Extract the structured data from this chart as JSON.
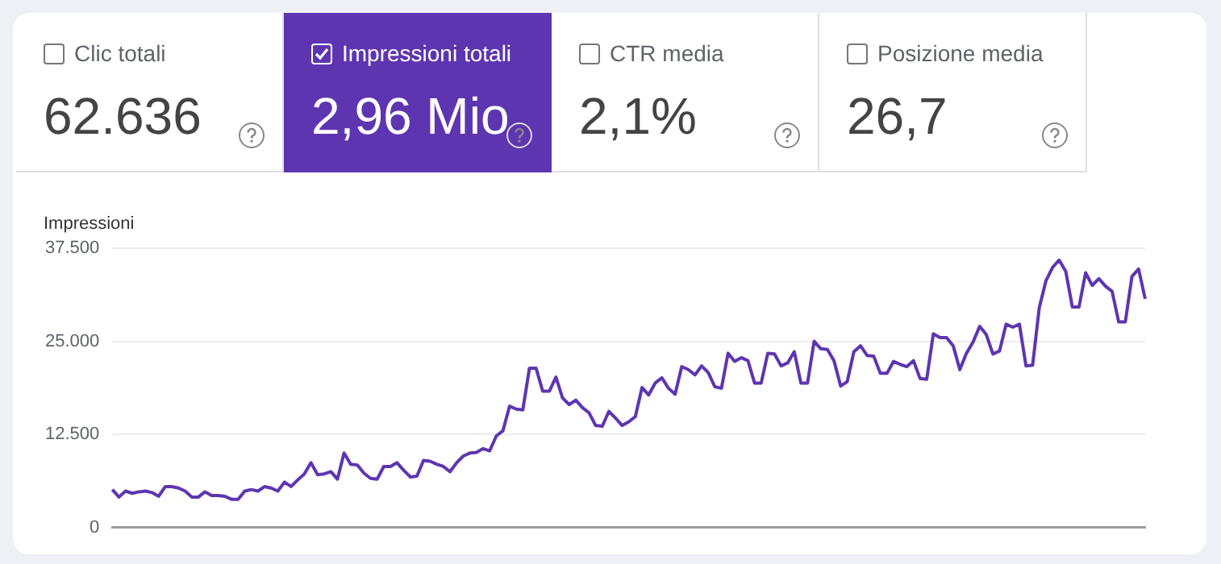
{
  "chart_data": [
    {
      "type": "other",
      "annotations": [
        "Clic totali",
        "62.636",
        "Impressioni totali",
        "2,96 Mio",
        "CTR media",
        "2,1%",
        "Posizione media",
        "26,7"
      ]
    },
    {
      "type": "line",
      "ylabel": "Impressioni",
      "color": "#5e35b1",
      "grid": "y",
      "legend": false,
      "marker": "none",
      "tick_labels": "y",
      "ylim": [
        0,
        37500
      ],
      "yticks": [
        {
          "value": 0,
          "label": "0"
        },
        {
          "value": 12500,
          "label": "12.500"
        },
        {
          "value": 25000,
          "label": "25.000"
        },
        {
          "value": 37500,
          "label": "37.500"
        }
      ],
      "categories": [
        null,
        null,
        null,
        null,
        null,
        null,
        null,
        null,
        null,
        null,
        null,
        null,
        null,
        null,
        null,
        null,
        null,
        null,
        null,
        null,
        null,
        null,
        null,
        null,
        null,
        null,
        null,
        null,
        null,
        null,
        null,
        null,
        null,
        null,
        null,
        null,
        null,
        null,
        null,
        null,
        null,
        null,
        null,
        null,
        null,
        null,
        null,
        null,
        null,
        null,
        null,
        null,
        null,
        null,
        null,
        null,
        null,
        null,
        null,
        null,
        null,
        null,
        null,
        null,
        null,
        null,
        null,
        null,
        null,
        null,
        null,
        null,
        null,
        null,
        null,
        null,
        null,
        null,
        null,
        null,
        null,
        null,
        null,
        null,
        null,
        null,
        null,
        null,
        null,
        null,
        null,
        null,
        null,
        null,
        null,
        null,
        null,
        null,
        null,
        null,
        null,
        null,
        null,
        null,
        null,
        null,
        null,
        null,
        null,
        null,
        null,
        null,
        null,
        null,
        null,
        null,
        null,
        null,
        null,
        null,
        null,
        null,
        null,
        null,
        null,
        null,
        null,
        null,
        null,
        null,
        null,
        null,
        null,
        null,
        null,
        null,
        null,
        null,
        null,
        null,
        null,
        null,
        null,
        null,
        null,
        null,
        null,
        null,
        null,
        null,
        null,
        null,
        null,
        null,
        null,
        null,
        null
      ],
      "values": [
        5100,
        4100,
        4900,
        4600,
        4800,
        4900,
        4700,
        4200,
        5500,
        5500,
        5300,
        4900,
        4100,
        4100,
        4800,
        4300,
        4300,
        4200,
        3800,
        3800,
        4900,
        5100,
        4900,
        5500,
        5300,
        4900,
        6100,
        5500,
        6400,
        7200,
        8700,
        7100,
        7200,
        7500,
        6500,
        10000,
        8500,
        8400,
        7300,
        6600,
        6500,
        8200,
        8200,
        8700,
        7700,
        6800,
        6900,
        9000,
        8900,
        8500,
        8200,
        7500,
        8700,
        9600,
        10000,
        10100,
        10600,
        10300,
        12300,
        13000,
        16300,
        15900,
        15800,
        21400,
        21400,
        18300,
        18300,
        20200,
        17400,
        16500,
        17100,
        16100,
        15400,
        13700,
        13600,
        15600,
        14700,
        13700,
        14200,
        14900,
        18800,
        17800,
        19400,
        20100,
        18700,
        17900,
        21600,
        21200,
        20500,
        21700,
        20800,
        18900,
        18700,
        23400,
        22300,
        22800,
        22400,
        19400,
        19400,
        23400,
        23300,
        21700,
        22100,
        23600,
        19400,
        19400,
        25000,
        24000,
        23900,
        22400,
        19000,
        19600,
        23600,
        24400,
        23100,
        23000,
        20700,
        20700,
        22300,
        21900,
        21600,
        22400,
        20000,
        19900,
        26000,
        25500,
        25500,
        24400,
        21200,
        23400,
        24900,
        27000,
        25900,
        23300,
        23700,
        27300,
        26900,
        27300,
        21700,
        21800,
        29500,
        33100,
        34900,
        35900,
        34400,
        29600,
        29600,
        34200,
        32500,
        33400,
        32400,
        31700,
        27600,
        27600,
        33700,
        34700,
        30700
      ]
    }
  ]
}
